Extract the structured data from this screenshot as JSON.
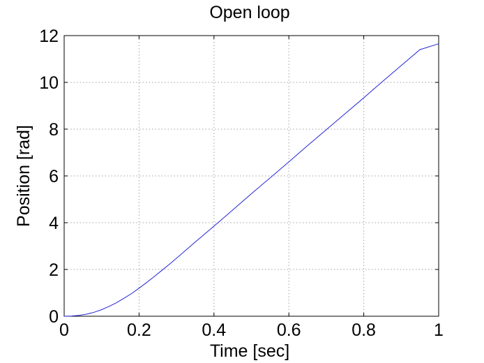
{
  "chart_data": {
    "type": "line",
    "title": "Open loop",
    "xlabel": "Time [sec]",
    "ylabel": "Position [rad]",
    "xlim": [
      0,
      1
    ],
    "ylim": [
      0,
      12
    ],
    "xticks": [
      0,
      0.2,
      0.4,
      0.6,
      0.8,
      1
    ],
    "xtick_labels": [
      "0",
      "0.2",
      "0.4",
      "0.6",
      "0.8",
      "1"
    ],
    "yticks": [
      0,
      2,
      4,
      6,
      8,
      10,
      12
    ],
    "ytick_labels": [
      "0",
      "2",
      "4",
      "6",
      "8",
      "10",
      "12"
    ],
    "grid": true,
    "series": [
      {
        "color": "#2323d6",
        "x": [
          0,
          0.02,
          0.04,
          0.06,
          0.08,
          0.1,
          0.12,
          0.14,
          0.16,
          0.18,
          0.2,
          0.22,
          0.24,
          0.26,
          0.28,
          0.3,
          0.35,
          0.4,
          0.45,
          0.5,
          0.55,
          0.6,
          0.65,
          0.7,
          0.75,
          0.8,
          0.85,
          0.9,
          0.95,
          1.0
        ],
        "y": [
          0,
          0.01,
          0.04,
          0.09,
          0.17,
          0.28,
          0.42,
          0.58,
          0.77,
          0.97,
          1.2,
          1.44,
          1.69,
          1.95,
          2.21,
          2.48,
          3.17,
          3.85,
          4.54,
          5.24,
          5.92,
          6.6,
          7.3,
          7.98,
          8.66,
          9.34,
          10.04,
          10.72,
          11.4,
          11.65
        ]
      }
    ]
  }
}
